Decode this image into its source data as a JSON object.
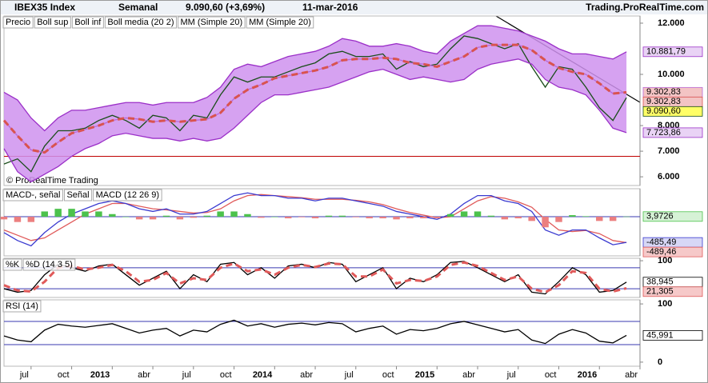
{
  "header": {
    "instrument": "IBEX35 Index",
    "period": "Semanal",
    "price": "9.090,60 (+3,69%)",
    "date": "11-mar-2016",
    "site": "Trading.ProRealTime.com",
    "watermark": "© ProRealTime Trading"
  },
  "chart_data": [
    {
      "type": "line",
      "band_fill": "#cf92ee",
      "x": [
        0,
        1,
        2,
        3,
        4,
        5,
        6,
        7,
        8,
        9,
        10,
        11,
        12,
        13,
        14,
        15,
        16,
        17,
        18,
        19,
        20,
        21,
        22,
        23,
        24,
        25,
        26,
        27,
        28,
        29,
        30,
        31,
        32,
        33,
        34,
        35,
        36,
        37,
        38,
        39,
        40,
        41,
        42,
        43,
        44,
        45,
        46
      ],
      "xlim": [
        0,
        47
      ],
      "xticks": [
        {
          "value": 2,
          "label": "jul"
        },
        {
          "value": 5,
          "label": "oct"
        },
        {
          "value": 8,
          "label": "2013"
        },
        {
          "value": 11,
          "label": "abr"
        },
        {
          "value": 14,
          "label": "jul"
        },
        {
          "value": 17,
          "label": "oct"
        },
        {
          "value": 20,
          "label": "2014"
        },
        {
          "value": 23,
          "label": "abr"
        },
        {
          "value": 26,
          "label": "jul"
        },
        {
          "value": 29,
          "label": "oct"
        },
        {
          "value": 32,
          "label": "2015"
        },
        {
          "value": 35,
          "label": "abr"
        },
        {
          "value": 38,
          "label": "jul"
        },
        {
          "value": 41,
          "label": "oct"
        },
        {
          "value": 44,
          "label": "2016"
        },
        {
          "value": 47,
          "label": "abr"
        }
      ],
      "ylim": [
        5660,
        12280
      ],
      "yticks": [
        {
          "value": 12000,
          "label": "12.000"
        },
        {
          "value": 10000,
          "label": "10.000"
        },
        {
          "value": 8000,
          "label": "8.000"
        },
        {
          "value": 7000,
          "label": "7.000"
        },
        {
          "value": 6000,
          "label": "6.000"
        }
      ],
      "hline": {
        "value": 6800,
        "color": "#c00000"
      },
      "series": [
        {
          "name": "Precio",
          "style": "line",
          "color": "#1a4d1a",
          "last_label": "9.090,60",
          "label_fill": "#ffff66",
          "values": [
            6500,
            6700,
            6200,
            7200,
            7800,
            7800,
            7900,
            8200,
            8400,
            8200,
            7900,
            8400,
            8300,
            7800,
            8400,
            8300,
            9200,
            9900,
            9700,
            9900,
            9900,
            10100,
            10300,
            10450,
            10800,
            10900,
            10700,
            10700,
            10800,
            10200,
            10500,
            10300,
            10400,
            11000,
            11500,
            11400,
            11200,
            11000,
            11200,
            10300,
            9500,
            10300,
            10200,
            9500,
            8700,
            8200,
            9090.6
          ]
        },
        {
          "name": "Boll sup",
          "style": "line",
          "color": "#9b30c8",
          "last_label": "10.881,79",
          "label_fill": "#e9d3f5",
          "values": [
            9300,
            9000,
            8300,
            7800,
            8300,
            8600,
            8600,
            8700,
            8800,
            8900,
            8900,
            8800,
            8900,
            8900,
            8900,
            9100,
            9500,
            10200,
            10400,
            10300,
            10500,
            10700,
            10800,
            10900,
            11100,
            11400,
            11300,
            11100,
            11100,
            11200,
            11100,
            10900,
            10800,
            11300,
            11600,
            11900,
            11900,
            11800,
            11700,
            11500,
            11300,
            11000,
            10800,
            10800,
            10700,
            10600,
            10881.79
          ]
        },
        {
          "name": "Boll inf",
          "style": "line",
          "color": "#9b30c8",
          "last_label": "7.723,86",
          "label_fill": "#e9d3f5",
          "values": [
            7100,
            6200,
            5800,
            6100,
            6400,
            6800,
            7100,
            7300,
            7600,
            7700,
            7600,
            7500,
            7500,
            7400,
            7500,
            7400,
            7500,
            7900,
            8400,
            8900,
            9200,
            9200,
            9300,
            9400,
            9500,
            9700,
            9900,
            10100,
            10200,
            10000,
            9800,
            9900,
            9800,
            9700,
            9800,
            10200,
            10400,
            10500,
            10600,
            10400,
            9800,
            9500,
            9400,
            9200,
            8600,
            7900,
            7723.86
          ]
        },
        {
          "name": "Boll media (20 2)",
          "style": "line",
          "color": "#b86ad8",
          "last_label": "9.302,83",
          "label_fill": "#f3c4c4",
          "values": [
            8200,
            7600,
            7050,
            6950,
            7350,
            7700,
            7850,
            8000,
            8200,
            8300,
            8250,
            8150,
            8200,
            8150,
            8200,
            8250,
            8500,
            9050,
            9400,
            9600,
            9850,
            9950,
            10050,
            10150,
            10300,
            10550,
            10600,
            10600,
            10650,
            10600,
            10450,
            10400,
            10300,
            10500,
            10700,
            11050,
            11150,
            11150,
            11150,
            10950,
            10550,
            10250,
            10100,
            10000,
            9650,
            9250,
            9302.83
          ]
        },
        {
          "name": "MM (Simple 20)",
          "style": "dashed",
          "color": "#d9534f",
          "last_label": "9.302,83",
          "label_fill": "#f3c4c4",
          "values": [
            8200,
            7600,
            7050,
            6950,
            7350,
            7700,
            7850,
            8000,
            8200,
            8300,
            8250,
            8150,
            8200,
            8150,
            8200,
            8250,
            8500,
            9050,
            9400,
            9600,
            9850,
            9950,
            10050,
            10150,
            10300,
            10550,
            10600,
            10600,
            10650,
            10600,
            10450,
            10400,
            10300,
            10500,
            10700,
            11050,
            11150,
            11150,
            11150,
            10950,
            10550,
            10250,
            10100,
            10000,
            9650,
            9250,
            9302.83
          ]
        }
      ],
      "legend_extra": [
        "MM (Simple 20)"
      ]
    },
    {
      "type": "line",
      "ylim": [
        -740,
        530
      ],
      "hline": {
        "value": 0,
        "color": "#3a3ab0"
      },
      "legend_extra": [
        "MACD-, señal"
      ],
      "series": [
        {
          "name": "Señal",
          "style": "line",
          "color": "#e05a5a",
          "last_label": "-489,46",
          "label_fill": "#f6c9c9",
          "values": [
            -250,
            -350,
            -450,
            -400,
            -250,
            -100,
            50,
            150,
            250,
            250,
            200,
            150,
            130,
            100,
            70,
            80,
            150,
            300,
            400,
            420,
            400,
            380,
            360,
            330,
            330,
            330,
            310,
            280,
            230,
            150,
            80,
            30,
            -20,
            0,
            150,
            300,
            380,
            350,
            280,
            180,
            -50,
            -250,
            -280,
            -260,
            -320,
            -450,
            -489.46
          ]
        },
        {
          "name": "MACD (12 26 9)",
          "style": "line",
          "color": "#3a3ad0",
          "last_label": "-485,49",
          "label_fill": "#d7d7f6",
          "values": [
            -300,
            -450,
            -550,
            -300,
            -100,
            50,
            150,
            250,
            300,
            250,
            150,
            100,
            150,
            50,
            50,
            100,
            250,
            400,
            450,
            400,
            400,
            350,
            350,
            300,
            350,
            350,
            300,
            250,
            200,
            100,
            50,
            0,
            -50,
            50,
            250,
            400,
            400,
            300,
            250,
            100,
            -250,
            -350,
            -250,
            -250,
            -400,
            -530,
            -485.49
          ]
        },
        {
          "name": "MACD-",
          "style": "histogram",
          "color": "#4cc24c",
          "neg_color": "#ec7f7f",
          "last_label": "3,9726",
          "label_fill": "#d6f2d6",
          "values": [
            -50,
            -100,
            -100,
            100,
            150,
            150,
            100,
            100,
            50,
            0,
            -50,
            -50,
            20,
            -50,
            -20,
            20,
            100,
            100,
            50,
            -20,
            0,
            -30,
            -10,
            -30,
            20,
            20,
            -10,
            -30,
            -30,
            -50,
            -30,
            -30,
            -30,
            50,
            100,
            100,
            20,
            -50,
            -30,
            -80,
            -200,
            -100,
            30,
            10,
            -80,
            -80,
            3.9726
          ]
        }
      ]
    },
    {
      "type": "line",
      "ylim": [
        -5,
        107
      ],
      "yticks": [
        100
      ],
      "levels": [
        80,
        20
      ],
      "series": [
        {
          "name": "%K",
          "style": "line",
          "color": "#000000",
          "last_label": "38,945",
          "label_fill": "#ffffff",
          "values": [
            20,
            10,
            15,
            60,
            90,
            80,
            70,
            85,
            90,
            60,
            30,
            50,
            70,
            20,
            60,
            40,
            90,
            95,
            60,
            80,
            50,
            85,
            90,
            80,
            95,
            90,
            40,
            60,
            80,
            20,
            50,
            40,
            60,
            95,
            98,
            80,
            60,
            40,
            60,
            10,
            5,
            40,
            80,
            60,
            10,
            15,
            38.945
          ]
        },
        {
          "name": "%D (14 3 5)",
          "style": "dashed",
          "color": "#e05a5a",
          "last_label": "21,305",
          "label_fill": "#f6c9c9",
          "values": [
            30,
            15,
            12,
            40,
            80,
            85,
            75,
            80,
            88,
            70,
            40,
            45,
            65,
            35,
            50,
            45,
            80,
            92,
            70,
            75,
            60,
            80,
            88,
            82,
            92,
            90,
            55,
            55,
            75,
            35,
            45,
            42,
            55,
            88,
            95,
            85,
            65,
            45,
            55,
            20,
            10,
            30,
            70,
            65,
            20,
            12,
            21.305
          ]
        }
      ]
    },
    {
      "type": "line",
      "ylim": [
        -7,
        107
      ],
      "yticks": [
        100,
        0
      ],
      "levels": [
        70,
        30
      ],
      "series": [
        {
          "name": "RSI (14)",
          "style": "line",
          "color": "#000000",
          "last_label": "45,991",
          "label_fill": "#ffffff",
          "values": [
            45,
            38,
            35,
            55,
            65,
            62,
            60,
            63,
            66,
            58,
            50,
            55,
            58,
            45,
            55,
            52,
            65,
            72,
            62,
            66,
            60,
            65,
            67,
            64,
            68,
            66,
            52,
            58,
            62,
            48,
            56,
            54,
            58,
            66,
            70,
            64,
            58,
            52,
            56,
            38,
            32,
            48,
            56,
            50,
            36,
            33,
            45.991
          ]
        }
      ]
    }
  ]
}
